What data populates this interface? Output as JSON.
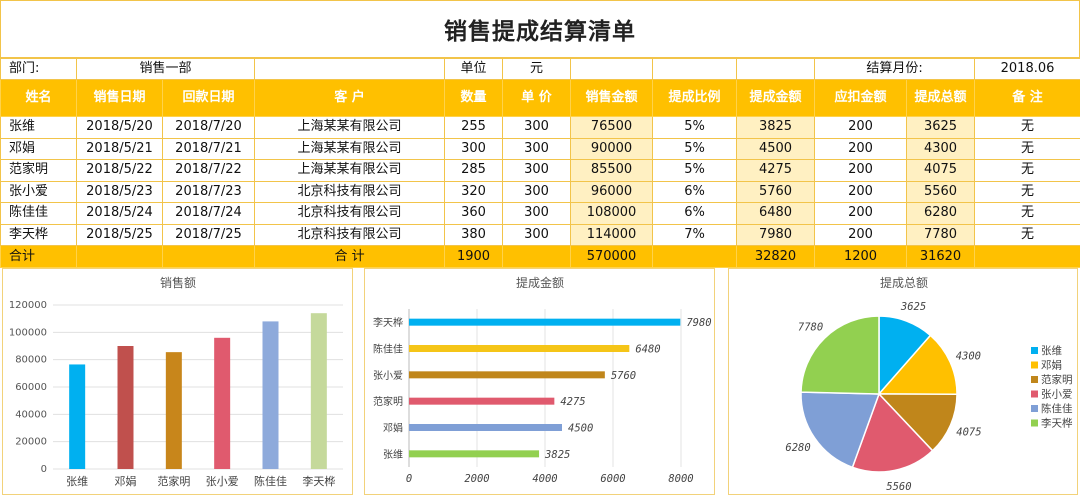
{
  "title": "销售提成结算清单",
  "info": {
    "dept_label": "部门:",
    "dept_value": "销售一部",
    "unit_label": "单位",
    "unit_value": "元",
    "month_label": "结算月份:",
    "month_value": "2018.06"
  },
  "headers": [
    "姓名",
    "销售日期",
    "回款日期",
    "客  户",
    "数量",
    "单 价",
    "销售金额",
    "提成比例",
    "提成金额",
    "应扣金额",
    "提成总额",
    "备  注"
  ],
  "rows": [
    [
      "张维",
      "2018/5/20",
      "2018/7/20",
      "上海某某有限公司",
      "255",
      "300",
      "76500",
      "5%",
      "3825",
      "200",
      "3625",
      "无"
    ],
    [
      "邓娟",
      "2018/5/21",
      "2018/7/21",
      "上海某某有限公司",
      "300",
      "300",
      "90000",
      "5%",
      "4500",
      "200",
      "4300",
      "无"
    ],
    [
      "范家明",
      "2018/5/22",
      "2018/7/22",
      "上海某某有限公司",
      "285",
      "300",
      "85500",
      "5%",
      "4275",
      "200",
      "4075",
      "无"
    ],
    [
      "张小爱",
      "2018/5/23",
      "2018/7/23",
      "北京科技有限公司",
      "320",
      "300",
      "96000",
      "6%",
      "5760",
      "200",
      "5560",
      "无"
    ],
    [
      "陈佳佳",
      "2018/5/24",
      "2018/7/24",
      "北京科技有限公司",
      "360",
      "300",
      "108000",
      "6%",
      "6480",
      "200",
      "6280",
      "无"
    ],
    [
      "李天桦",
      "2018/5/25",
      "2018/7/25",
      "北京科技有限公司",
      "380",
      "300",
      "114000",
      "7%",
      "7980",
      "200",
      "7780",
      "无"
    ]
  ],
  "total": {
    "label": "合计",
    "customer": "合  计",
    "qty": "1900",
    "sales": "570000",
    "commission": "32820",
    "deduct": "1200",
    "net": "31620"
  },
  "colors": {
    "header": "#ffc000",
    "border": "#f2c44a",
    "highlight": "#fff0c2",
    "series": [
      "#00b0f0",
      "#c0504d",
      "#c8861b",
      "#e05a6e",
      "#8eaadb",
      "#c5d99b"
    ],
    "bar_h": [
      "#00b0f0",
      "#f5c518",
      "#c0861b",
      "#e05a6e",
      "#7f9fd6",
      "#92d050"
    ],
    "pie": [
      "#00b0f0",
      "#ffc000",
      "#c0861b",
      "#e05a6e",
      "#7f9fd6",
      "#92d050"
    ]
  },
  "chart_data": [
    {
      "type": "bar",
      "title": "销售额",
      "categories": [
        "张维",
        "邓娟",
        "范家明",
        "张小爱",
        "陈佳佳",
        "李天桦"
      ],
      "values": [
        76500,
        90000,
        85500,
        96000,
        108000,
        114000
      ],
      "yticks": [
        0,
        20000,
        40000,
        60000,
        80000,
        100000,
        120000
      ],
      "ylim": [
        0,
        120000
      ],
      "grid": true
    },
    {
      "type": "bar",
      "orientation": "horizontal",
      "title": "提成金额",
      "categories": [
        "李天桦",
        "陈佳佳",
        "张小爱",
        "范家明",
        "邓娟",
        "张维"
      ],
      "values": [
        7980,
        6480,
        5760,
        4275,
        4500,
        3825
      ],
      "xticks": [
        0,
        2000,
        4000,
        6000,
        8000
      ],
      "xlim": [
        0,
        8000
      ],
      "grid": true
    },
    {
      "type": "pie",
      "title": "提成总额",
      "categories": [
        "张维",
        "邓娟",
        "范家明",
        "张小爱",
        "陈佳佳",
        "李天桦"
      ],
      "values": [
        3625,
        4300,
        4075,
        5560,
        6280,
        7780
      ],
      "legend": "right"
    }
  ]
}
